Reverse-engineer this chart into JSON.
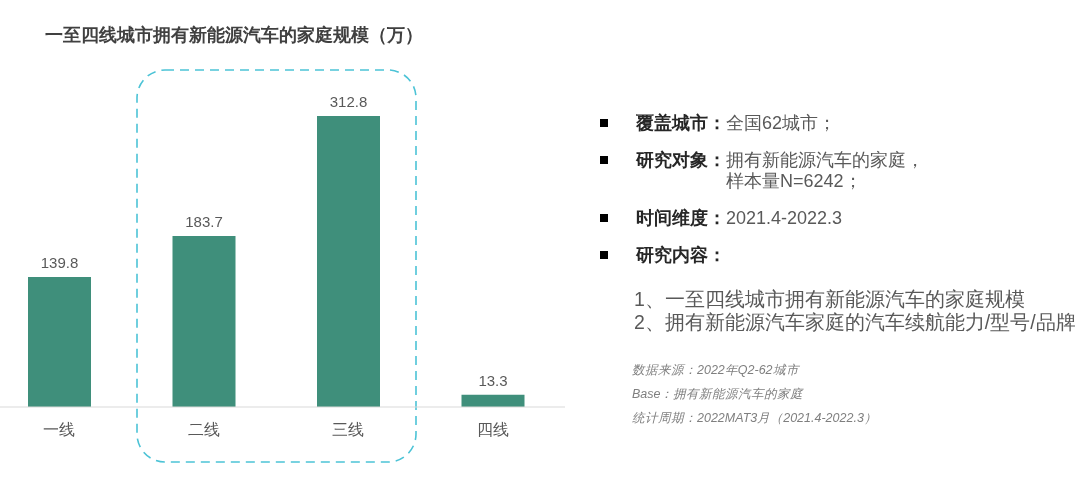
{
  "chart_data": [
    {
      "type": "bar",
      "title": "一至四线城市拥有新能源汽车的家庭规模（万）",
      "categories": [
        "一线",
        "二线",
        "三线",
        "四线"
      ],
      "values": [
        139.8,
        183.7,
        312.8,
        13.3
      ],
      "color": "#3f8f7b",
      "data_labels": true
    },
    {
      "type": "other",
      "annotations": [
        "覆盖城市：全国62城市；",
        "研究对象：拥有新能源汽车的家庭，样本量N=6242；",
        "时间维度：2021.4-2022.3",
        "研究内容：",
        "1、一至四线城市拥有新能源汽车的家庭规模",
        "2、拥有新能源汽车家庭的汽车续航能力/型号/品牌",
        "数据来源：2022年Q2-62城市",
        "Base：拥有新能源汽车的家庭",
        "统计周期：2022MAT3月（2021.4-2022.3）"
      ]
    }
  ]
}
